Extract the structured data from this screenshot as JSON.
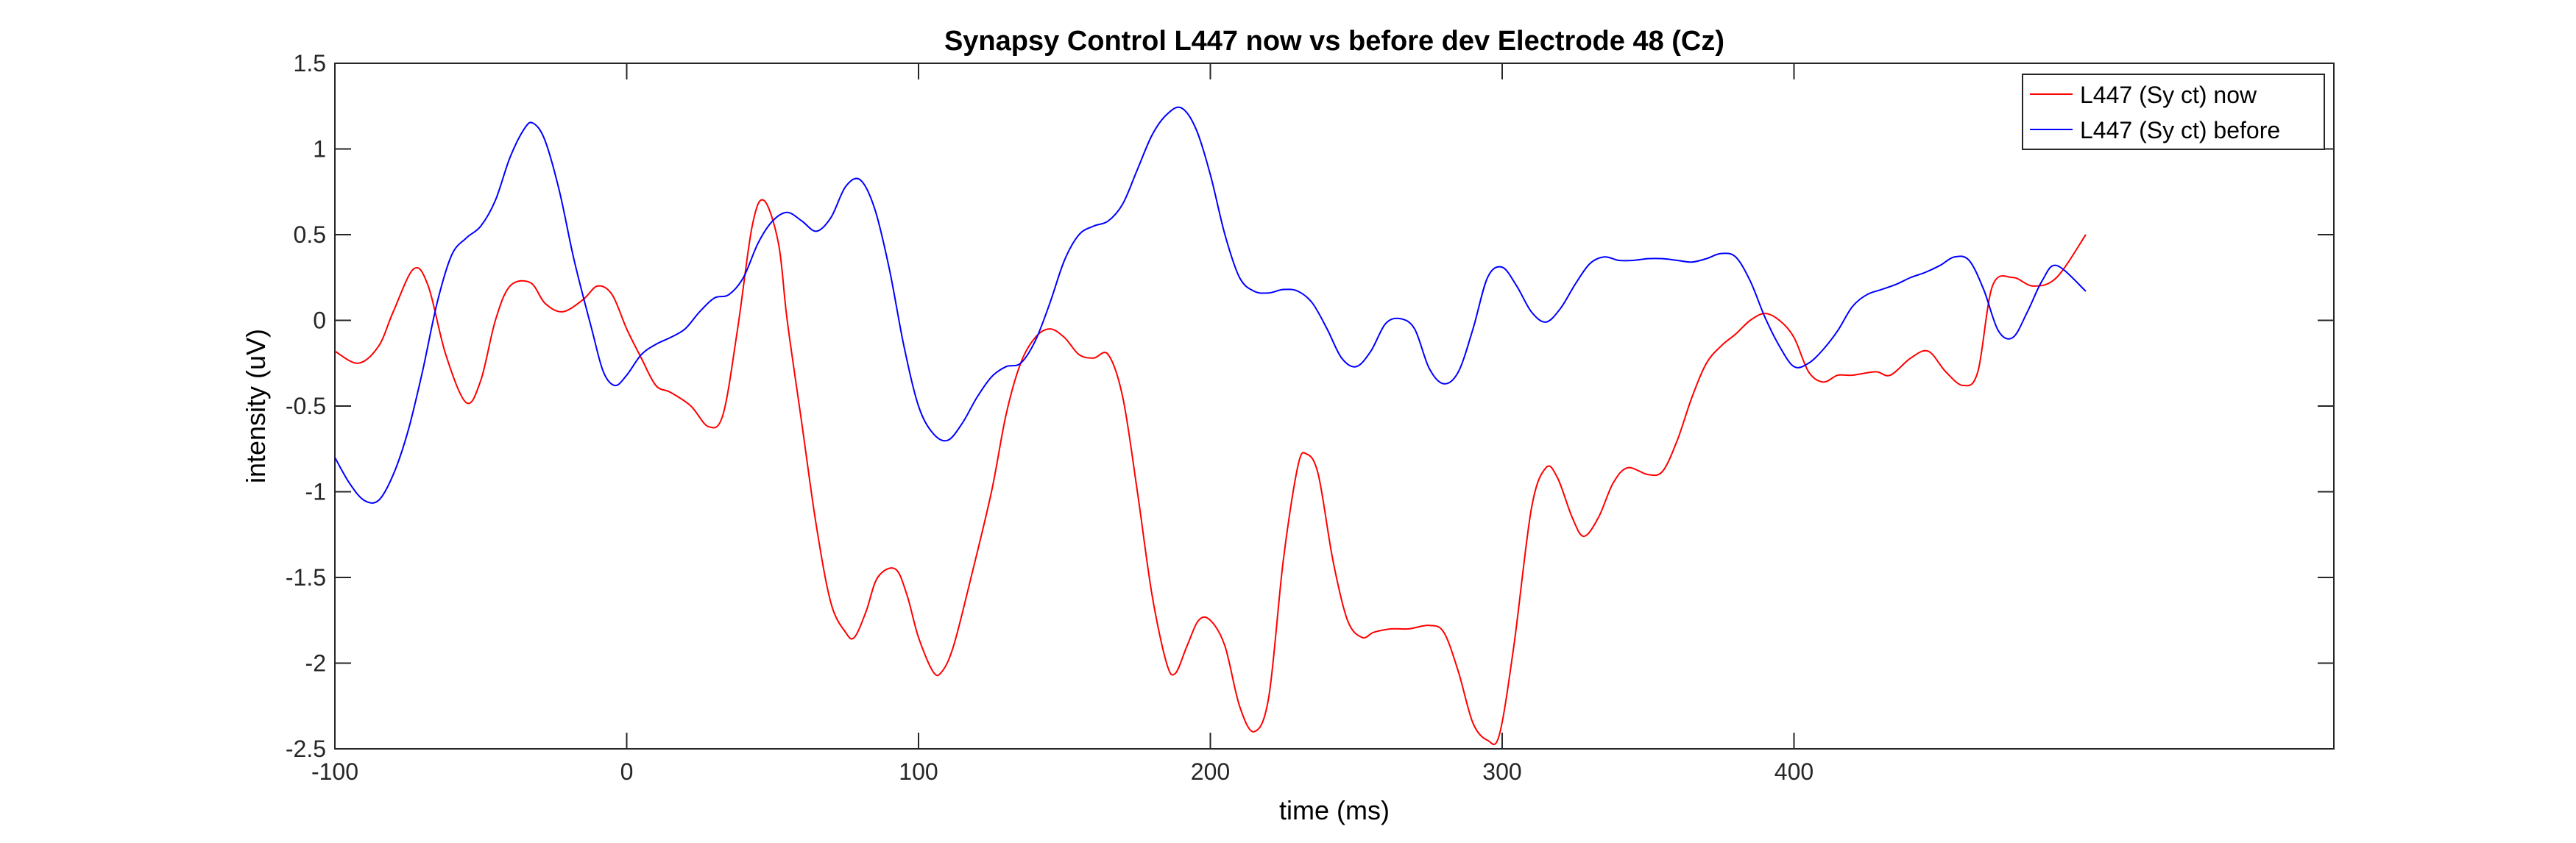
{
  "chart_data": {
    "type": "line",
    "title": "Synapsy Control L447 now vs before dev Electrode 48 (Cz)",
    "xlabel": "time (ms)",
    "ylabel": "intensity (uV)",
    "xlim": [
      -100,
      585
    ],
    "ylim": [
      -2.5,
      1.5
    ],
    "xticks": [
      -100,
      0,
      100,
      200,
      300,
      400
    ],
    "xtick_labels": [
      "-100",
      "0",
      "100",
      "200",
      "300",
      "400"
    ],
    "yticks": [
      1.5,
      1,
      0.5,
      0,
      -0.5,
      -1,
      -1.5,
      -2,
      -2.5
    ],
    "ytick_labels": [
      "1.5",
      "1",
      "0.5",
      "0",
      "-0.5",
      "-1",
      "-1.5",
      "-2",
      "-2.5"
    ],
    "grid": false,
    "legend_position": "top-right",
    "series": [
      {
        "name": "L447 (Sy ct) now",
        "color": "#ff0000",
        "x": [
          -100,
          -92,
          -85,
          -80,
          -73,
          -68,
          -62,
          -55,
          -50,
          -45,
          -40,
          -33,
          -28,
          -22,
          -15,
          -10,
          -5,
          0,
          5,
          10,
          15,
          22,
          28,
          33,
          38,
          43,
          47,
          52,
          55,
          60,
          65,
          70,
          75,
          78,
          82,
          86,
          92,
          96,
          100,
          105,
          108,
          112,
          118,
          125,
          130,
          135,
          140,
          145,
          150,
          155,
          160,
          165,
          170,
          175,
          180,
          185,
          188,
          192,
          196,
          200,
          205,
          210,
          215,
          220,
          225,
          230,
          233,
          237,
          242,
          247,
          252,
          256,
          262,
          268,
          275,
          280,
          285,
          290,
          295,
          299,
          304,
          310,
          315,
          319,
          324,
          328,
          333,
          338,
          343,
          350,
          355,
          360,
          365,
          370,
          375,
          380,
          385,
          390,
          395,
          400,
          405,
          410,
          415,
          420,
          428,
          433,
          440,
          446,
          452,
          458,
          463,
          468,
          475,
          482,
          490,
          500
        ],
        "values": [
          -0.18,
          -0.25,
          -0.15,
          0.05,
          0.3,
          0.2,
          -0.2,
          -0.48,
          -0.35,
          0.0,
          0.2,
          0.22,
          0.1,
          0.05,
          0.12,
          0.2,
          0.15,
          -0.05,
          -0.22,
          -0.38,
          -0.42,
          -0.5,
          -0.62,
          -0.55,
          -0.05,
          0.55,
          0.7,
          0.45,
          0.0,
          -0.6,
          -1.2,
          -1.65,
          -1.82,
          -1.85,
          -1.7,
          -1.5,
          -1.45,
          -1.6,
          -1.85,
          -2.05,
          -2.05,
          -1.9,
          -1.5,
          -1.0,
          -0.55,
          -0.25,
          -0.1,
          -0.05,
          -0.1,
          -0.2,
          -0.22,
          -0.2,
          -0.45,
          -1.0,
          -1.6,
          -2.0,
          -2.06,
          -1.9,
          -1.75,
          -1.75,
          -1.9,
          -2.25,
          -2.4,
          -2.2,
          -1.4,
          -0.85,
          -0.78,
          -0.9,
          -1.4,
          -1.75,
          -1.85,
          -1.82,
          -1.8,
          -1.8,
          -1.78,
          -1.82,
          -2.05,
          -2.35,
          -2.45,
          -2.42,
          -1.9,
          -1.1,
          -0.86,
          -0.92,
          -1.15,
          -1.26,
          -1.15,
          -0.95,
          -0.86,
          -0.9,
          -0.88,
          -0.7,
          -0.45,
          -0.25,
          -0.15,
          -0.08,
          0.0,
          0.04,
          0.0,
          -0.1,
          -0.3,
          -0.36,
          -0.32,
          -0.32,
          -0.3,
          -0.32,
          -0.22,
          -0.18,
          -0.3,
          -0.38,
          -0.3,
          0.2,
          0.25,
          0.2,
          0.25,
          0.5
        ]
      },
      {
        "name": "L447 (Sy ct) before",
        "color": "#0000ff",
        "x": [
          -100,
          -95,
          -90,
          -85,
          -80,
          -75,
          -70,
          -65,
          -60,
          -55,
          -50,
          -45,
          -40,
          -35,
          -32,
          -28,
          -23,
          -18,
          -12,
          -8,
          -4,
          0,
          5,
          10,
          15,
          20,
          25,
          30,
          35,
          40,
          45,
          50,
          55,
          60,
          65,
          70,
          75,
          80,
          85,
          90,
          95,
          100,
          105,
          110,
          115,
          120,
          125,
          130,
          135,
          140,
          145,
          150,
          155,
          160,
          165,
          170,
          175,
          180,
          185,
          190,
          195,
          200,
          205,
          210,
          215,
          220,
          225,
          230,
          235,
          240,
          245,
          250,
          255,
          260,
          265,
          270,
          275,
          280,
          285,
          290,
          295,
          300,
          305,
          310,
          315,
          320,
          325,
          330,
          335,
          340,
          345,
          350,
          355,
          360,
          365,
          370,
          375,
          380,
          385,
          390,
          395,
          400,
          405,
          410,
          415,
          420,
          425,
          430,
          435,
          440,
          445,
          450,
          455,
          460,
          465,
          470,
          475,
          480,
          485,
          490,
          500
        ],
        "values": [
          -0.8,
          -0.95,
          -1.05,
          -1.05,
          -0.9,
          -0.65,
          -0.3,
          0.1,
          0.38,
          0.48,
          0.55,
          0.7,
          0.95,
          1.12,
          1.15,
          1.05,
          0.75,
          0.35,
          -0.05,
          -0.3,
          -0.38,
          -0.32,
          -0.2,
          -0.14,
          -0.1,
          -0.05,
          0.05,
          0.13,
          0.15,
          0.25,
          0.45,
          0.58,
          0.63,
          0.58,
          0.52,
          0.6,
          0.78,
          0.82,
          0.65,
          0.3,
          -0.15,
          -0.5,
          -0.66,
          -0.7,
          -0.6,
          -0.45,
          -0.33,
          -0.27,
          -0.25,
          -0.12,
          0.1,
          0.35,
          0.5,
          0.55,
          0.58,
          0.68,
          0.88,
          1.08,
          1.2,
          1.24,
          1.12,
          0.85,
          0.5,
          0.25,
          0.17,
          0.16,
          0.18,
          0.17,
          0.1,
          -0.05,
          -0.22,
          -0.27,
          -0.18,
          -0.02,
          0.01,
          -0.05,
          -0.28,
          -0.37,
          -0.3,
          -0.05,
          0.25,
          0.31,
          0.2,
          0.05,
          -0.01,
          0.07,
          0.21,
          0.33,
          0.37,
          0.35,
          0.35,
          0.36,
          0.36,
          0.35,
          0.34,
          0.36,
          0.39,
          0.37,
          0.23,
          0.02,
          -0.15,
          -0.27,
          -0.25,
          -0.17,
          -0.06,
          0.08,
          0.15,
          0.18,
          0.21,
          0.25,
          0.28,
          0.32,
          0.37,
          0.35,
          0.18,
          -0.06,
          -0.1,
          0.05,
          0.23,
          0.32,
          0.17
        ]
      }
    ]
  }
}
